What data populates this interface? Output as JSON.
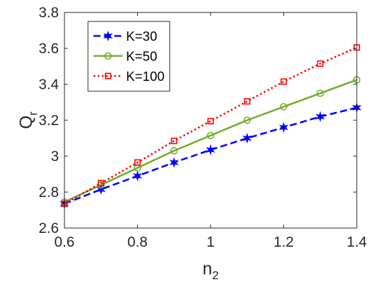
{
  "chart_data": {
    "type": "line",
    "xlabel": {
      "main": "n",
      "sub": "2"
    },
    "ylabel": {
      "main": "Q",
      "sub": "r"
    },
    "xlim": [
      0.6,
      1.4
    ],
    "ylim": [
      2.6,
      3.8
    ],
    "xticks": [
      "0.6",
      "0.8",
      "1",
      "1.2",
      "1.4"
    ],
    "xtick_values": [
      0.6,
      0.8,
      1.0,
      1.2,
      1.4
    ],
    "yticks": [
      "2.6",
      "2.8",
      "3",
      "3.2",
      "3.4",
      "3.6",
      "3.8"
    ],
    "ytick_values": [
      2.6,
      2.8,
      3.0,
      3.2,
      3.4,
      3.6,
      3.8
    ],
    "grid": false,
    "legend_position": "top-left",
    "x": [
      0.6,
      0.7,
      0.8,
      0.9,
      1.0,
      1.1,
      1.2,
      1.3,
      1.4
    ],
    "series": [
      {
        "name": "K=30",
        "color": "#0000ff",
        "dash": "dashed",
        "marker": "star",
        "values": [
          2.735,
          2.815,
          2.89,
          2.965,
          3.035,
          3.1,
          3.16,
          3.22,
          3.27
        ]
      },
      {
        "name": "K=50",
        "color": "#77ac30",
        "dash": "solid",
        "marker": "circle",
        "values": [
          2.745,
          2.84,
          2.935,
          3.03,
          3.115,
          3.2,
          3.275,
          3.35,
          3.425
        ]
      },
      {
        "name": "K=100",
        "color": "#ff0000",
        "dash": "dotted",
        "marker": "square",
        "values": [
          2.735,
          2.85,
          2.965,
          3.085,
          3.195,
          3.305,
          3.415,
          3.515,
          3.605
        ]
      }
    ]
  }
}
